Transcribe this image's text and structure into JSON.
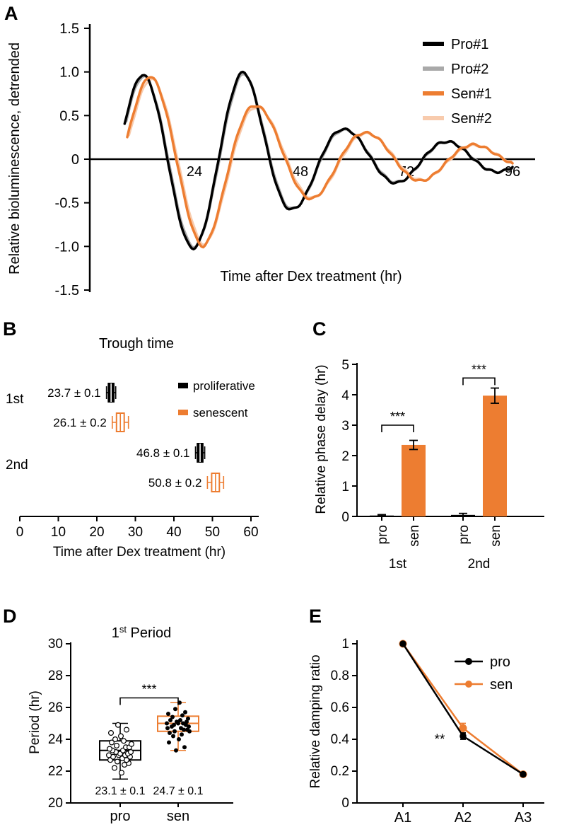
{
  "colors": {
    "black": "#000000",
    "gray": "#a9a9a9",
    "orange": "#ED7D31",
    "light_orange": "#F8CBAD"
  },
  "chart_data": [
    {
      "id": "A",
      "letter": "A",
      "type": "line",
      "xlabel": "Time after Dex treatment (hr)",
      "ylabel": "Relative bioluminescence, detrended",
      "xlim": [
        0,
        101
      ],
      "ylim": [
        -1.5,
        1.5
      ],
      "xticks": [
        {
          "v": 24,
          "label": "24"
        },
        {
          "v": 48,
          "label": "48"
        },
        {
          "v": 72,
          "label": "72"
        },
        {
          "v": 96,
          "label": "96"
        }
      ],
      "yticks": [
        {
          "v": 1.5,
          "label": "1.5"
        },
        {
          "v": 1.0,
          "label": "1.0"
        },
        {
          "v": 0.5,
          "label": "0.5"
        },
        {
          "v": 0,
          "label": "0"
        },
        {
          "v": -0.5,
          "label": "-0.5"
        },
        {
          "v": -1.0,
          "label": "-1.0"
        },
        {
          "v": -1.5,
          "label": "-1.5"
        }
      ],
      "legend": [
        {
          "label": "Pro#1",
          "color": "black"
        },
        {
          "label": "Pro#2",
          "color": "gray"
        },
        {
          "label": "Sen#1",
          "color": "orange"
        },
        {
          "label": "Sen#2",
          "color": "light_orange"
        }
      ],
      "series": [
        {
          "name": "Pro#2",
          "color": "gray",
          "width": 3,
          "trough1": 23.9,
          "period": 23.1,
          "t_start": 8.6,
          "t_end": 96,
          "envelope": [
            [
              8,
              0.83
            ],
            [
              12.3,
              0.95
            ],
            [
              23.9,
              1.0
            ],
            [
              35.5,
              0.98
            ],
            [
              47,
              0.55
            ],
            [
              58.2,
              0.33
            ],
            [
              70.2,
              0.26
            ],
            [
              81.5,
              0.2
            ],
            [
              96,
              0.13
            ]
          ]
        },
        {
          "name": "Sen#2",
          "color": "light_orange",
          "width": 3,
          "trough1": 26.4,
          "period": 24.7,
          "t_start": 9.2,
          "t_end": 96,
          "envelope": [
            [
              8,
              0.76
            ],
            [
              14,
              0.92
            ],
            [
              26.4,
              0.98
            ],
            [
              38.8,
              0.58
            ],
            [
              51.1,
              0.44
            ],
            [
              63.3,
              0.29
            ],
            [
              75.3,
              0.24
            ],
            [
              87.3,
              0.16
            ],
            [
              96,
              0.1
            ]
          ]
        },
        {
          "name": "Pro#1",
          "color": "black",
          "width": 3.5,
          "trough1": 23.7,
          "period": 23.1,
          "t_start": 8.2,
          "t_end": 96,
          "envelope": [
            [
              8,
              0.85
            ],
            [
              12.2,
              0.97
            ],
            [
              23.7,
              1.02
            ],
            [
              35.3,
              1.0
            ],
            [
              46.8,
              0.56
            ],
            [
              58,
              0.34
            ],
            [
              70,
              0.27
            ],
            [
              81.3,
              0.2
            ],
            [
              96,
              0.13
            ]
          ]
        },
        {
          "name": "Sen#1",
          "color": "orange",
          "width": 3.5,
          "trough1": 26.1,
          "period": 24.7,
          "t_start": 8.8,
          "t_end": 96,
          "envelope": [
            [
              8,
              0.78
            ],
            [
              13.8,
              0.95
            ],
            [
              26.1,
              1.0
            ],
            [
              38.5,
              0.6
            ],
            [
              50.8,
              0.45
            ],
            [
              63,
              0.3
            ],
            [
              75,
              0.25
            ],
            [
              87,
              0.17
            ],
            [
              96,
              0.1
            ]
          ]
        }
      ]
    },
    {
      "id": "B",
      "letter": "B",
      "type": "boxplot-horizontal",
      "title": "Trough time",
      "xlabel": "Time after Dex treatment (hr)",
      "xlim": [
        0,
        62
      ],
      "xticks": [
        0,
        10,
        20,
        30,
        40,
        50,
        60
      ],
      "rows": [
        "1st",
        "2nd"
      ],
      "legend": [
        {
          "label": "proliferative",
          "color": "black"
        },
        {
          "label": "senescent",
          "color": "orange"
        }
      ],
      "boxes": [
        {
          "row": "1st",
          "group": "proliferative",
          "mean": 23.7,
          "sem": 0.1,
          "label": "23.7 ± 0.1",
          "color": "black"
        },
        {
          "row": "1st",
          "group": "senescent",
          "mean": 26.1,
          "sem": 0.2,
          "label": "26.1 ± 0.2",
          "color": "orange"
        },
        {
          "row": "2nd",
          "group": "proliferative",
          "mean": 46.8,
          "sem": 0.1,
          "label": "46.8 ± 0.1",
          "color": "black"
        },
        {
          "row": "2nd",
          "group": "senescent",
          "mean": 50.8,
          "sem": 0.2,
          "label": "50.8 ± 0.2",
          "color": "orange"
        }
      ]
    },
    {
      "id": "C",
      "letter": "C",
      "type": "bar",
      "ylabel": "Relative phase delay (hr)",
      "ylim": [
        0,
        5
      ],
      "yticks": [
        0,
        1,
        2,
        3,
        4,
        5
      ],
      "groups": [
        "1st",
        "2nd"
      ],
      "bars": [
        {
          "group": "1st",
          "label": "pro",
          "value": 0.03,
          "err": 0.03,
          "color": "black"
        },
        {
          "group": "1st",
          "label": "sen",
          "value": 2.35,
          "err": 0.15,
          "color": "orange"
        },
        {
          "group": "2nd",
          "label": "pro",
          "value": 0.05,
          "err": 0.05,
          "color": "black"
        },
        {
          "group": "2nd",
          "label": "sen",
          "value": 3.97,
          "err": 0.25,
          "color": "orange"
        }
      ],
      "significance": [
        {
          "group": "1st",
          "label": "***",
          "y": 3.0
        },
        {
          "group": "2nd",
          "label": "***",
          "y": 4.55
        }
      ]
    },
    {
      "id": "D",
      "letter": "D",
      "type": "boxplot",
      "title_parts": {
        "base": "1",
        "sup": "st",
        "rest": " Period"
      },
      "ylabel": "Period (hr)",
      "ylim": [
        20,
        30
      ],
      "yticks": [
        20,
        22,
        24,
        26,
        28,
        30
      ],
      "categories": [
        "pro",
        "sen"
      ],
      "significance": {
        "label": "***",
        "y": 26.6
      },
      "boxes": [
        {
          "name": "pro",
          "color": "black",
          "marker": "open",
          "q1": 22.7,
          "median": 23.3,
          "q3": 23.9,
          "lo": 21.5,
          "hi": 25.0,
          "mean_label": "23.1 ± 0.1",
          "points": [
            21.9,
            22.2,
            22.4,
            22.5,
            22.6,
            22.7,
            22.7,
            22.8,
            22.9,
            22.9,
            23.0,
            23.0,
            23.0,
            23.1,
            23.1,
            23.2,
            23.2,
            23.3,
            23.3,
            23.4,
            23.5,
            23.5,
            23.6,
            23.7,
            23.8,
            23.9,
            24.0,
            24.2,
            24.4,
            24.6,
            24.9
          ],
          "jitter": [
            2,
            -8,
            6,
            12,
            -4,
            -14,
            9,
            3,
            -10,
            14,
            -2,
            7,
            -16,
            0,
            11,
            -6,
            15,
            -11,
            4,
            -15,
            8,
            13,
            -5,
            16,
            -12,
            5,
            -7,
            1,
            -13,
            9,
            -3
          ]
        },
        {
          "name": "sen",
          "color": "orange",
          "marker": "filled",
          "q1": 24.5,
          "median": 25.0,
          "q3": 25.45,
          "lo": 23.3,
          "hi": 26.3,
          "mean_label": "24.7 ± 0.1",
          "points": [
            23.3,
            23.5,
            23.8,
            24.0,
            24.2,
            24.3,
            24.4,
            24.5,
            24.5,
            24.6,
            24.6,
            24.7,
            24.7,
            24.8,
            24.8,
            24.9,
            24.9,
            25.0,
            25.0,
            25.0,
            25.1,
            25.1,
            25.2,
            25.2,
            25.3,
            25.4,
            25.5,
            25.6,
            25.7,
            25.9,
            26.3
          ],
          "jitter": [
            -3,
            9,
            -13,
            1,
            -7,
            5,
            -12,
            16,
            -5,
            13,
            8,
            -15,
            4,
            -9,
            15,
            -6,
            11,
            0,
            -16,
            7,
            -2,
            12,
            -11,
            3,
            14,
            -8,
            6,
            -14,
            10,
            -4,
            2
          ]
        }
      ]
    },
    {
      "id": "E",
      "letter": "E",
      "type": "line",
      "ylabel": "Relative damping ratio",
      "ylim": [
        0,
        1
      ],
      "yticks": [
        {
          "v": 0,
          "label": "0"
        },
        {
          "v": 0.2,
          "label": "0.2"
        },
        {
          "v": 0.4,
          "label": "0.4"
        },
        {
          "v": 0.6,
          "label": "0.6"
        },
        {
          "v": 0.8,
          "label": "0.8"
        },
        {
          "v": 1,
          "label": "1"
        }
      ],
      "categories": [
        "A1",
        "A2",
        "A3"
      ],
      "series": [
        {
          "name": "pro",
          "color": "black",
          "values": [
            1,
            0.42,
            0.18
          ],
          "err": [
            0,
            0.02,
            0.01
          ]
        },
        {
          "name": "sen",
          "color": "orange",
          "values": [
            1,
            0.47,
            0.18
          ],
          "err": [
            0,
            0.03,
            0.01
          ]
        }
      ],
      "significance": {
        "label": "**"
      }
    }
  ]
}
